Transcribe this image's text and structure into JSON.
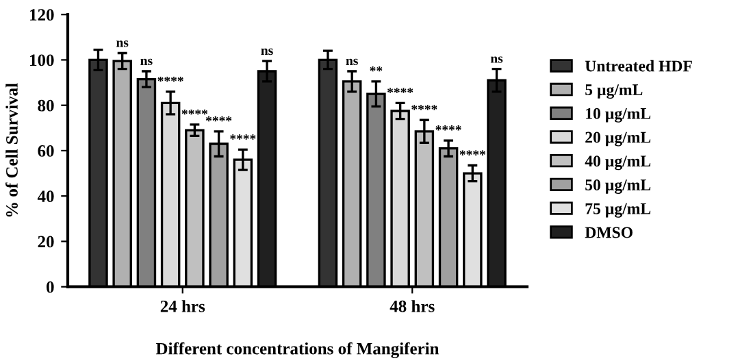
{
  "chart_data": {
    "type": "bar",
    "xlabel": "Different concentrations of Mangiferin",
    "ylabel": "% of Cell Survival",
    "categories": [
      "24 hrs",
      "48 hrs"
    ],
    "ylim": [
      0,
      120
    ],
    "yticks": [
      0,
      20,
      40,
      60,
      80,
      100,
      120
    ],
    "grid": false,
    "legend": "right",
    "series": [
      {
        "name": "Untreated HDF",
        "color": "#333333",
        "values": [
          100,
          100
        ],
        "errors": [
          4.5,
          4
        ],
        "value_labels": [
          null,
          null
        ]
      },
      {
        "name": "5 µg/mL",
        "color": "#b0b0b0",
        "values": [
          99.5,
          90.5
        ],
        "errors": [
          3.5,
          4.5
        ],
        "value_labels": [
          "ns",
          "ns"
        ]
      },
      {
        "name": "10 µg/mL",
        "color": "#808080",
        "values": [
          91.5,
          85
        ],
        "errors": [
          3.5,
          5.5
        ],
        "value_labels": [
          "ns",
          "**"
        ]
      },
      {
        "name": "20 µg/mL",
        "color": "#d9d9d9",
        "values": [
          81,
          77.5
        ],
        "errors": [
          5,
          3.5
        ],
        "value_labels": [
          "****",
          "****"
        ]
      },
      {
        "name": "40 µg/mL",
        "color": "#c0c0c0",
        "values": [
          69,
          68.5
        ],
        "errors": [
          2.5,
          5
        ],
        "value_labels": [
          "****",
          "****"
        ]
      },
      {
        "name": "50 µg/mL",
        "color": "#a0a0a0",
        "values": [
          63,
          61
        ],
        "errors": [
          5.5,
          3.5
        ],
        "value_labels": [
          "****",
          "****"
        ]
      },
      {
        "name": "75 µg/mL",
        "color": "#e0e0e0",
        "values": [
          56,
          50
        ],
        "errors": [
          4.5,
          3.5
        ],
        "value_labels": [
          "****",
          "****"
        ]
      },
      {
        "name": "DMSO",
        "color": "#202020",
        "values": [
          95,
          91
        ],
        "errors": [
          4.5,
          5
        ],
        "value_labels": [
          "ns",
          "ns"
        ]
      }
    ]
  }
}
